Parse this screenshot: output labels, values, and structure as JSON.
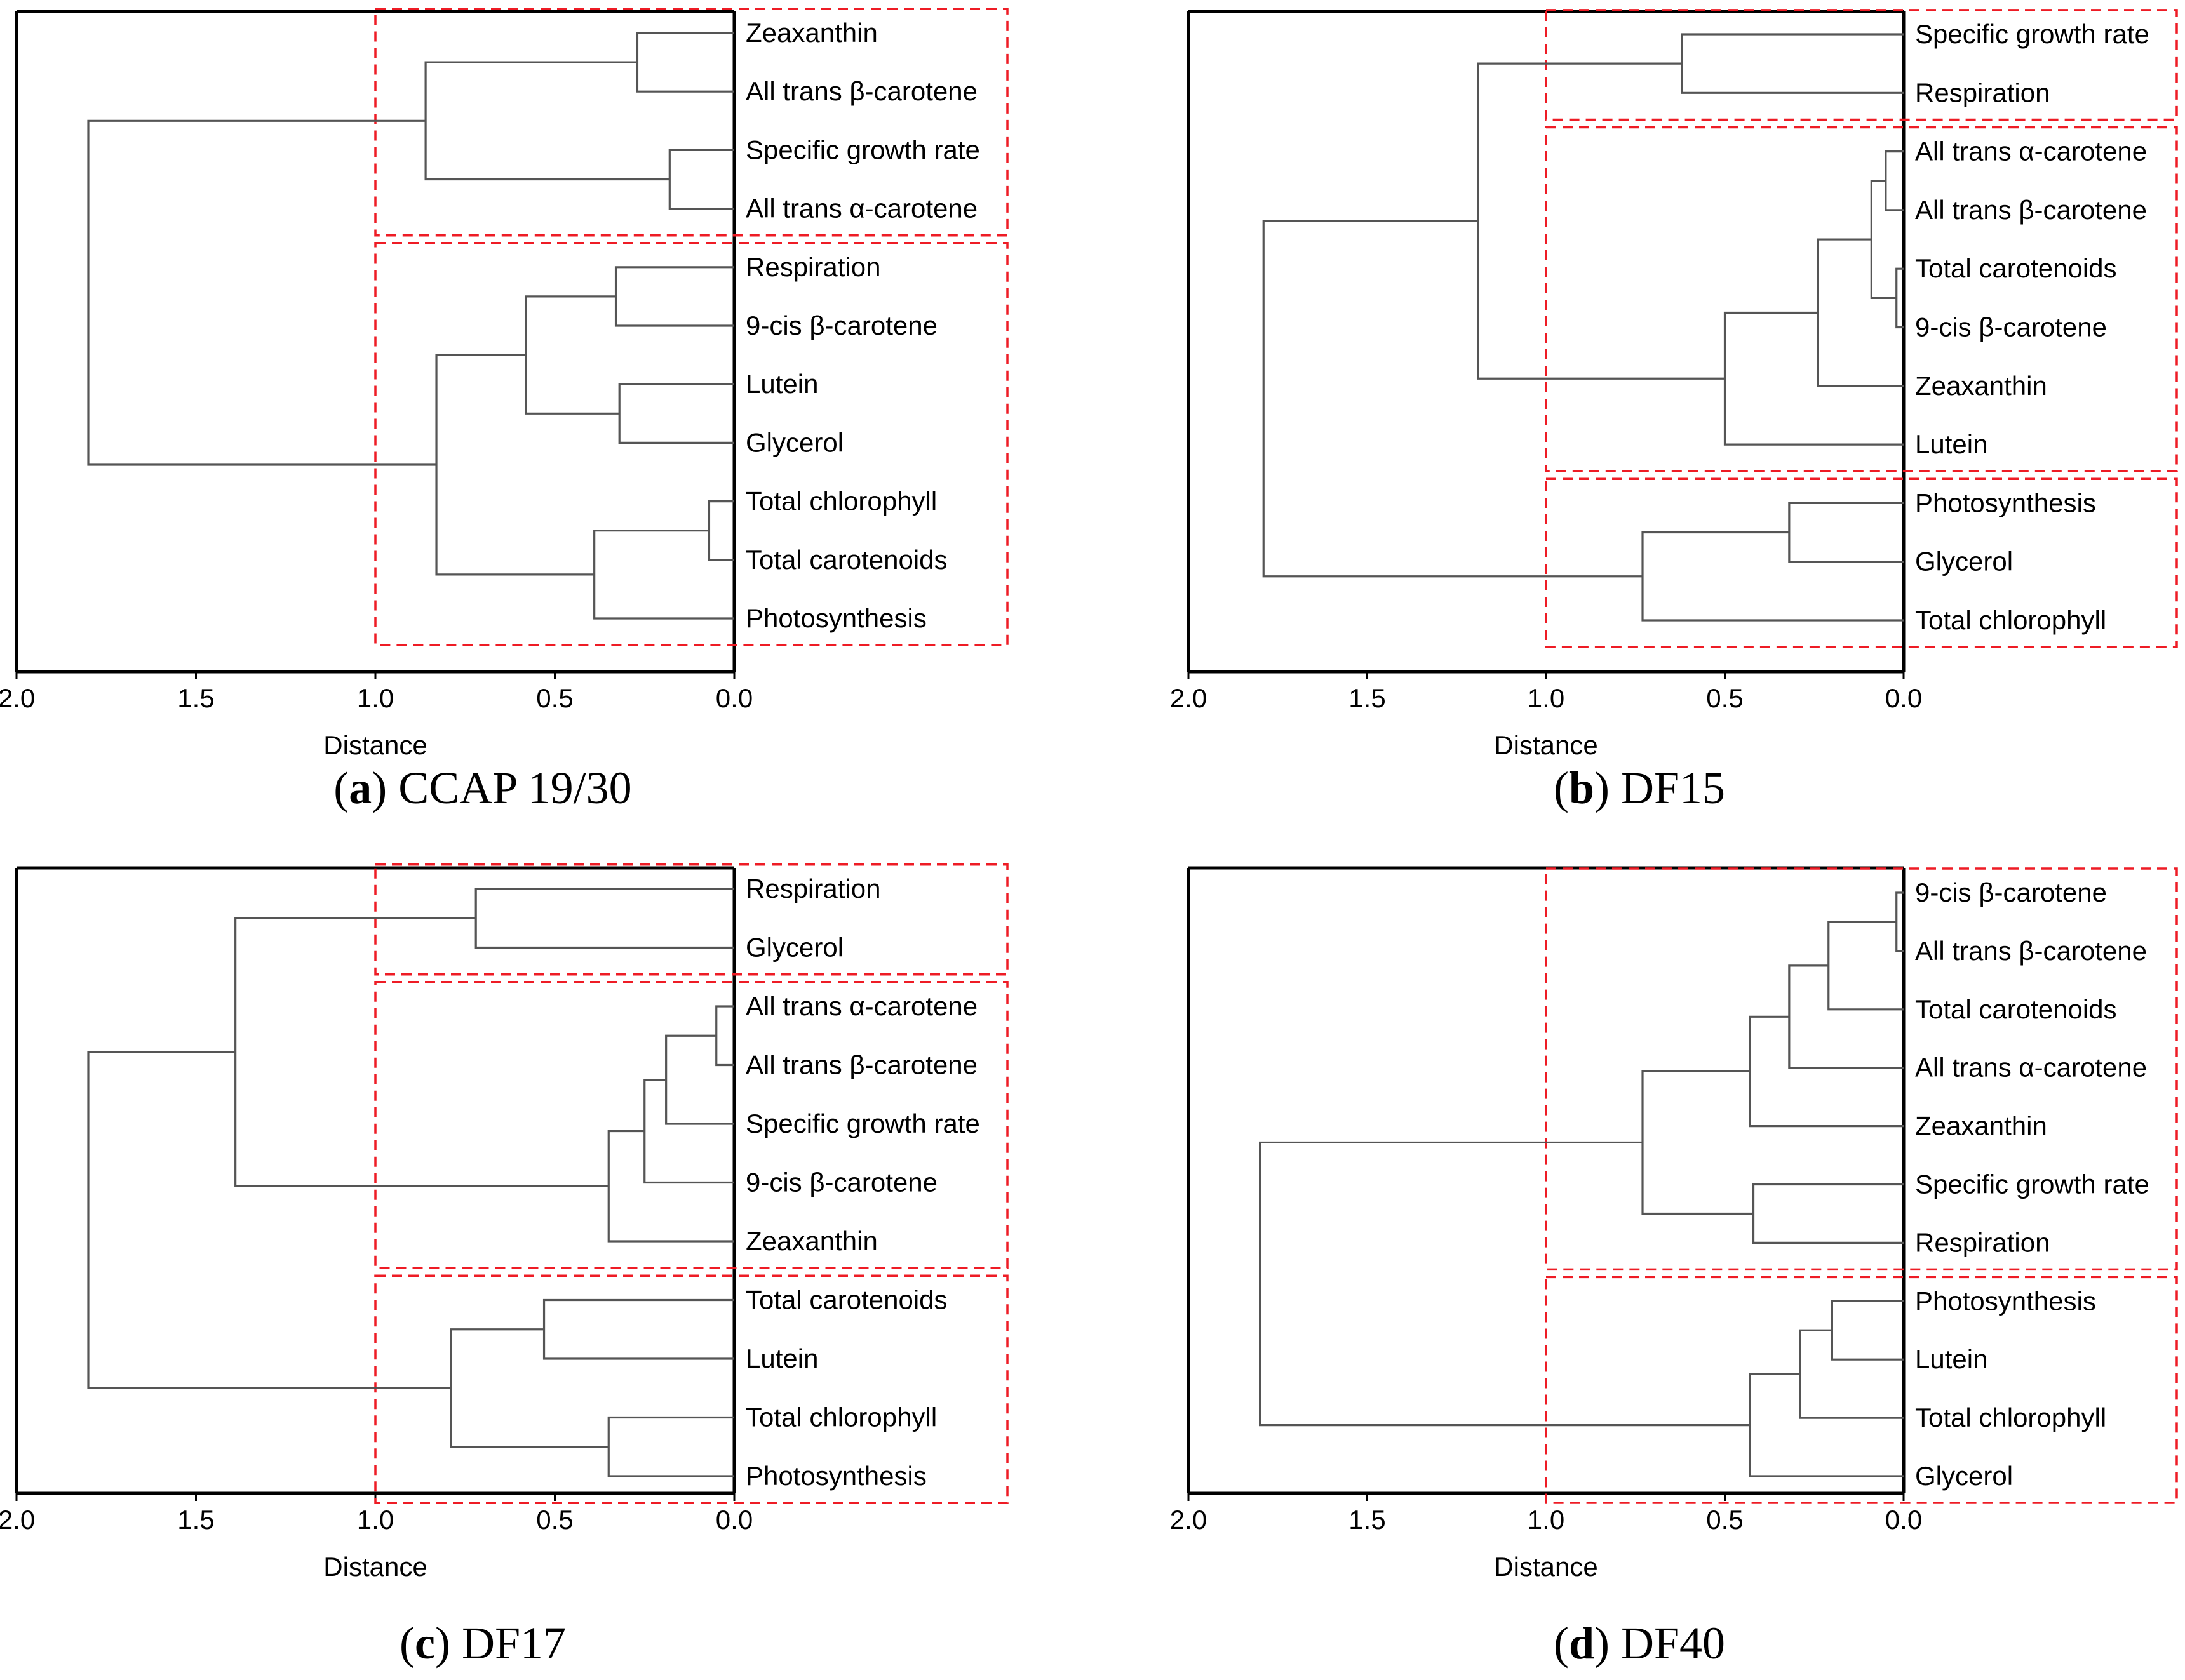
{
  "chart_data": [
    {
      "type": "dendrogram",
      "caption_letter": "a",
      "caption_text": "CCAP 19/30",
      "xlabel": "Distance",
      "xlim": [
        2.0,
        0.0
      ],
      "ticks": [
        "2.0",
        "1.5",
        "1.0",
        "0.5",
        "0.0"
      ],
      "tick_values": [
        2.0,
        1.5,
        1.0,
        0.5,
        0.0
      ],
      "cut_distance": 1.0,
      "leaves": [
        "Zeaxanthin",
        "All trans β-carotene",
        "Specific growth rate",
        "All trans α-carotene",
        "Respiration",
        "9-cis β-carotene",
        "Lutein",
        "Glycerol",
        "Total chlorophyll",
        "Total carotenoids",
        "Photosynthesis"
      ],
      "merges": [
        [
          0,
          1,
          0.27
        ],
        [
          2,
          3,
          0.18
        ],
        [
          11,
          12,
          0.86
        ],
        [
          4,
          5,
          0.33
        ],
        [
          6,
          7,
          0.32
        ],
        [
          14,
          15,
          0.58
        ],
        [
          8,
          9,
          0.07
        ],
        [
          17,
          10,
          0.39
        ],
        [
          16,
          18,
          0.83
        ],
        [
          13,
          19,
          1.8
        ]
      ],
      "clusters": [
        [
          0,
          3
        ],
        [
          4,
          10
        ]
      ]
    },
    {
      "type": "dendrogram",
      "caption_letter": "b",
      "caption_text": "DF15",
      "xlabel": "Distance",
      "xlim": [
        2.0,
        0.0
      ],
      "ticks": [
        "2.0",
        "1.5",
        "1.0",
        "0.5",
        "0.0"
      ],
      "tick_values": [
        2.0,
        1.5,
        1.0,
        0.5,
        0.0
      ],
      "cut_distance": 1.0,
      "leaves": [
        "Specific growth rate",
        "Respiration",
        "All trans α-carotene",
        "All trans β-carotene",
        "Total carotenoids",
        "9-cis β-carotene",
        "Zeaxanthin",
        "Lutein",
        "Photosynthesis",
        "Glycerol",
        "Total chlorophyll"
      ],
      "merges": [
        [
          0,
          1,
          0.62
        ],
        [
          2,
          3,
          0.05
        ],
        [
          4,
          5,
          0.02
        ],
        [
          12,
          13,
          0.09
        ],
        [
          14,
          6,
          0.24
        ],
        [
          15,
          7,
          0.5
        ],
        [
          11,
          16,
          1.19
        ],
        [
          8,
          9,
          0.32
        ],
        [
          18,
          10,
          0.73
        ],
        [
          17,
          19,
          1.79
        ]
      ],
      "clusters": [
        [
          0,
          1
        ],
        [
          2,
          7
        ],
        [
          8,
          10
        ]
      ]
    },
    {
      "type": "dendrogram",
      "caption_letter": "c",
      "caption_text": "DF17",
      "xlabel": "Distance",
      "xlim": [
        2.0,
        0.0
      ],
      "ticks": [
        "2.0",
        "1.5",
        "1.0",
        "0.5",
        "0.0"
      ],
      "tick_values": [
        2.0,
        1.5,
        1.0,
        0.5,
        0.0
      ],
      "cut_distance": 1.0,
      "leaves": [
        "Respiration",
        "Glycerol",
        "All trans α-carotene",
        "All trans β-carotene",
        "Specific growth rate",
        "9-cis β-carotene",
        "Zeaxanthin",
        "Total carotenoids",
        "Lutein",
        "Total chlorophyll",
        "Photosynthesis"
      ],
      "merges": [
        [
          0,
          1,
          0.72
        ],
        [
          2,
          3,
          0.05
        ],
        [
          12,
          4,
          0.19
        ],
        [
          13,
          5,
          0.25
        ],
        [
          14,
          6,
          0.35
        ],
        [
          11,
          15,
          1.39
        ],
        [
          7,
          8,
          0.53
        ],
        [
          9,
          10,
          0.35
        ],
        [
          17,
          18,
          0.79
        ],
        [
          16,
          19,
          1.8
        ]
      ],
      "clusters": [
        [
          0,
          1
        ],
        [
          2,
          6
        ],
        [
          7,
          10
        ]
      ]
    },
    {
      "type": "dendrogram",
      "caption_letter": "d",
      "caption_text": "DF40",
      "xlabel": "Distance",
      "xlim": [
        2.0,
        0.0
      ],
      "ticks": [
        "2.0",
        "1.5",
        "1.0",
        "0.5",
        "0.0"
      ],
      "tick_values": [
        2.0,
        1.5,
        1.0,
        0.5,
        0.0
      ],
      "cut_distance": 1.0,
      "leaves": [
        "9-cis β-carotene",
        "All trans β-carotene",
        "Total carotenoids",
        "All trans α-carotene",
        "Zeaxanthin",
        "Specific growth rate",
        "Respiration",
        "Photosynthesis",
        "Lutein",
        "Total chlorophyll",
        "Glycerol"
      ],
      "merges": [
        [
          0,
          1,
          0.02
        ],
        [
          11,
          2,
          0.21
        ],
        [
          12,
          3,
          0.32
        ],
        [
          13,
          4,
          0.43
        ],
        [
          5,
          6,
          0.42
        ],
        [
          14,
          15,
          0.73
        ],
        [
          7,
          8,
          0.2
        ],
        [
          17,
          9,
          0.29
        ],
        [
          18,
          10,
          0.43
        ],
        [
          16,
          19,
          1.8
        ]
      ],
      "clusters": [
        [
          0,
          6
        ],
        [
          7,
          10
        ]
      ]
    }
  ]
}
